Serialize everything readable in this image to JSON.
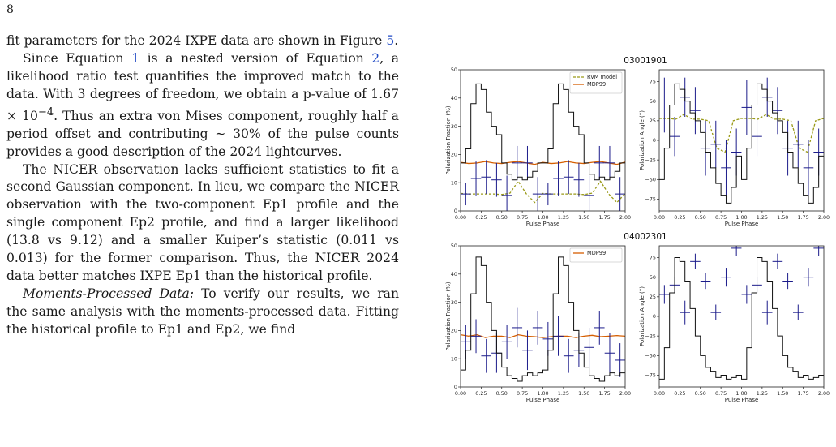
{
  "page_number": "8",
  "paragraphs": [
    {
      "indent": false,
      "parts": [
        {
          "t": "fit parameters for the 2024 IXPE data are shown in Figure "
        },
        {
          "t": "5",
          "c": "cite"
        },
        {
          "t": "."
        }
      ]
    },
    {
      "indent": true,
      "parts": [
        {
          "t": "Since Equation "
        },
        {
          "t": "1",
          "c": "cite"
        },
        {
          "t": " is a nested version of Equation "
        },
        {
          "t": "2",
          "c": "cite"
        },
        {
          "t": ", a likelihood ratio test quantifies the improved match to the data. With 3 degrees of freedom, we obtain a p-value of 1.67 × 10"
        },
        {
          "t": "−4",
          "sup": true
        },
        {
          "t": ". Thus an extra von Mises component, roughly half a period offset and contributing ∼ 30% of the pulse counts provides a good description of the 2024 lightcurves."
        }
      ]
    },
    {
      "indent": true,
      "parts": [
        {
          "t": "The NICER observation lacks sufficient statistics to fit a second Gaussian component. In lieu, we compare the NICER observation with the two-component Ep1 profile and the single component Ep2 profile, and find a larger likelihood (13.8 vs 9.12) and a smaller Kuiper’s statistic (0.011 vs 0.013) for the former comparison. Thus, the NICER 2024 data better matches IXPE Ep1 than the historical profile."
        }
      ]
    },
    {
      "indent": true,
      "parts": [
        {
          "t": "Moments-Processed Data:",
          "i": true
        },
        {
          "t": " To verify our results, we ran the same analysis with the moments-processed data. Fitting the historical profile to Ep1 and Ep2, we find"
        }
      ]
    }
  ],
  "chart_data": [
    {
      "type": "line",
      "title": "03001901",
      "xlabel": "Pulse Phase",
      "ylabel": "Polarization Fraction (%)",
      "xlim": [
        0,
        2
      ],
      "ylim": [
        0,
        50
      ],
      "xticks": [
        "0.00",
        "0.25",
        "0.50",
        "0.75",
        "1.00",
        "1.25",
        "1.50",
        "1.75",
        "2.00"
      ],
      "yticks": [
        0,
        10,
        20,
        30,
        40,
        50
      ],
      "legend": {
        "placement": "top-right",
        "entries": [
          "RVM model",
          "MDP99"
        ]
      },
      "series": [
        {
          "name": "RVM model",
          "style": "dashed",
          "color": "#9a9a18",
          "x": [
            0.0,
            0.1,
            0.2,
            0.3,
            0.4,
            0.5,
            0.6,
            0.7,
            0.8,
            0.9,
            1.0,
            1.1,
            1.2,
            1.3,
            1.4,
            1.5,
            1.6,
            1.7,
            1.8,
            1.9,
            2.0
          ],
          "y": [
            6.2,
            6,
            6,
            6,
            6,
            5.8,
            6.3,
            10.5,
            6,
            3,
            6.2,
            6,
            6,
            6,
            6,
            5.8,
            6.3,
            10.5,
            6,
            3,
            6.2
          ]
        },
        {
          "name": "MDP99",
          "style": "solid",
          "color": "#d55e00",
          "x": [
            0.0,
            0.1,
            0.2,
            0.3,
            0.4,
            0.5,
            0.6,
            0.7,
            0.8,
            0.9,
            1.0,
            1.1,
            1.2,
            1.3,
            1.4,
            1.5,
            1.6,
            1.7,
            1.8,
            1.9,
            2.0
          ],
          "y": [
            17.2,
            16.8,
            17,
            17.5,
            17,
            16.8,
            17.2,
            17.5,
            17,
            16.5,
            17.2,
            16.8,
            17,
            17.5,
            17,
            16.8,
            17.2,
            17.5,
            17,
            16.5,
            17.3
          ]
        },
        {
          "style": "points",
          "color": "#1b1b8a",
          "x": [
            0.0625,
            0.1875,
            0.3125,
            0.4375,
            0.5625,
            0.6875,
            0.8125,
            0.9375,
            1.0625,
            1.1875,
            1.3125,
            1.4375,
            1.5625,
            1.6875,
            1.8125,
            1.9375
          ],
          "y": [
            6,
            11.5,
            12,
            11,
            5.5,
            17,
            17,
            6,
            6,
            11.5,
            12,
            11,
            5.5,
            17,
            17,
            6
          ],
          "err": [
            4,
            6,
            6,
            6,
            7,
            6,
            6,
            6,
            4,
            6,
            6,
            6,
            7,
            6,
            6,
            6
          ]
        },
        {
          "style": "step",
          "color": "#111111",
          "note": "pulse profile (arbitrary units)",
          "x": [
            0,
            0.0625,
            0.125,
            0.1875,
            0.25,
            0.3125,
            0.375,
            0.4375,
            0.5,
            0.5625,
            0.625,
            0.6875,
            0.75,
            0.8125,
            0.875,
            0.9375,
            1.0,
            1.0625,
            1.125,
            1.1875,
            1.25,
            1.3125,
            1.375,
            1.4375,
            1.5,
            1.5625,
            1.625,
            1.6875,
            1.75,
            1.8125,
            1.875,
            1.9375
          ],
          "y": [
            17,
            22,
            38,
            45,
            43,
            35,
            30,
            27,
            17,
            13,
            11,
            12,
            11,
            12,
            14,
            17,
            17,
            22,
            38,
            45,
            43,
            35,
            30,
            27,
            17,
            13,
            11,
            12,
            11,
            12,
            14,
            17
          ]
        }
      ]
    },
    {
      "type": "line",
      "title": "",
      "xlabel": "Pulse Phase",
      "ylabel": "Polarization Angle (°)",
      "xlim": [
        0,
        2
      ],
      "ylim": [
        -90,
        90
      ],
      "xticks": [
        "0.00",
        "0.25",
        "0.50",
        "0.75",
        "1.00",
        "1.25",
        "1.50",
        "1.75",
        "2.00"
      ],
      "yticks": [
        -75,
        -50,
        -25,
        0,
        25,
        50,
        75
      ],
      "series": [
        {
          "name": "RVM model",
          "style": "dashed",
          "color": "#9a9a18",
          "x": [
            0.0,
            0.1,
            0.2,
            0.3,
            0.4,
            0.5,
            0.6,
            0.7,
            0.8,
            0.9,
            1.0,
            1.1,
            1.2,
            1.3,
            1.4,
            1.5,
            1.6,
            1.7,
            1.8,
            1.9,
            2.0
          ],
          "y": [
            28,
            28,
            27,
            33,
            27,
            27,
            25,
            -10,
            -15,
            25,
            28,
            28,
            27,
            33,
            27,
            27,
            25,
            -10,
            -15,
            25,
            28
          ]
        },
        {
          "style": "points",
          "color": "#1b1b8a",
          "x": [
            0.0625,
            0.1875,
            0.3125,
            0.4375,
            0.5625,
            0.6875,
            0.8125,
            0.9375,
            1.0625,
            1.1875,
            1.3125,
            1.4375,
            1.5625,
            1.6875,
            1.8125,
            1.9375
          ],
          "y": [
            45,
            5,
            55,
            38,
            -10,
            -5,
            -35,
            -15,
            42,
            5,
            55,
            38,
            -10,
            -5,
            -35,
            -15
          ],
          "err": [
            35,
            25,
            25,
            30,
            35,
            30,
            35,
            30,
            35,
            25,
            25,
            30,
            35,
            30,
            35,
            30
          ]
        },
        {
          "style": "step",
          "color": "#111111",
          "note": "pulse profile (arbitrary units)",
          "x": [
            0,
            0.0625,
            0.125,
            0.1875,
            0.25,
            0.3125,
            0.375,
            0.4375,
            0.5,
            0.5625,
            0.625,
            0.6875,
            0.75,
            0.8125,
            0.875,
            0.9375,
            1.0,
            1.0625,
            1.125,
            1.1875,
            1.25,
            1.3125,
            1.375,
            1.4375,
            1.5,
            1.5625,
            1.625,
            1.6875,
            1.75,
            1.8125,
            1.875,
            1.9375
          ],
          "y": [
            -50,
            -10,
            45,
            72,
            65,
            50,
            35,
            25,
            10,
            -15,
            -35,
            -55,
            -70,
            -80,
            -60,
            -20,
            -50,
            -10,
            45,
            72,
            65,
            50,
            35,
            25,
            10,
            -15,
            -35,
            -55,
            -70,
            -80,
            -60,
            -20
          ]
        }
      ]
    },
    {
      "type": "line",
      "title": "04002301",
      "xlabel": "Pulse Phase",
      "ylabel": "Polarization Fraction (%)",
      "xlim": [
        0,
        2
      ],
      "ylim": [
        0,
        50
      ],
      "xticks": [
        "0.00",
        "0.25",
        "0.50",
        "0.75",
        "1.00",
        "1.25",
        "1.50",
        "1.75",
        "2.00"
      ],
      "yticks": [
        0,
        10,
        20,
        30,
        40,
        50
      ],
      "legend": {
        "placement": "top-right",
        "entries": [
          "MDP99"
        ]
      },
      "series": [
        {
          "name": "MDP99",
          "style": "solid",
          "color": "#d55e00",
          "x": [
            0.0,
            0.1,
            0.2,
            0.3,
            0.4,
            0.5,
            0.6,
            0.7,
            0.8,
            0.9,
            1.0,
            1.1,
            1.2,
            1.3,
            1.4,
            1.5,
            1.6,
            1.7,
            1.8,
            1.9,
            2.0
          ],
          "y": [
            18.5,
            18,
            18.5,
            17.5,
            18,
            18,
            17.5,
            18.5,
            18,
            17.8,
            17.5,
            17.8,
            18,
            18,
            17.5,
            18,
            18.3,
            17.8,
            18,
            18.2,
            18
          ]
        },
        {
          "style": "points",
          "color": "#1b1b8a",
          "x": [
            0.0625,
            0.1875,
            0.3125,
            0.4375,
            0.5625,
            0.6875,
            0.8125,
            0.9375,
            1.0625,
            1.1875,
            1.3125,
            1.4375,
            1.5625,
            1.6875,
            1.8125,
            1.9375
          ],
          "y": [
            16,
            18,
            11,
            12,
            16,
            21,
            13,
            21,
            17,
            18,
            11,
            13,
            14,
            21,
            12,
            9.5
          ],
          "err": [
            6,
            6,
            6,
            7,
            6,
            7,
            7,
            6,
            6,
            7,
            6,
            6,
            7,
            6,
            7,
            6
          ]
        },
        {
          "style": "step",
          "color": "#111111",
          "note": "pulse profile (arbitrary units)",
          "x": [
            0,
            0.0625,
            0.125,
            0.1875,
            0.25,
            0.3125,
            0.375,
            0.4375,
            0.5,
            0.5625,
            0.625,
            0.6875,
            0.75,
            0.8125,
            0.875,
            0.9375,
            1.0,
            1.0625,
            1.125,
            1.1875,
            1.25,
            1.3125,
            1.375,
            1.4375,
            1.5,
            1.5625,
            1.625,
            1.6875,
            1.75,
            1.8125,
            1.875,
            1.9375
          ],
          "y": [
            6,
            13,
            33,
            46,
            43,
            30,
            20,
            12,
            7,
            4,
            3,
            2,
            4,
            5,
            4,
            5,
            6,
            13,
            33,
            46,
            43,
            30,
            20,
            12,
            7,
            4,
            3,
            2,
            4,
            5,
            4,
            5
          ]
        }
      ]
    },
    {
      "type": "line",
      "title": "",
      "xlabel": "Pulse Phase",
      "ylabel": "Polarization Angle (°)",
      "xlim": [
        0,
        2
      ],
      "ylim": [
        -90,
        90
      ],
      "xticks": [
        "0.00",
        "0.25",
        "0.50",
        "0.75",
        "1.00",
        "1.25",
        "1.50",
        "1.75",
        "2.00"
      ],
      "yticks": [
        -75,
        -50,
        -25,
        0,
        25,
        50,
        75
      ],
      "series": [
        {
          "style": "points",
          "color": "#1b1b8a",
          "x": [
            0.0625,
            0.1875,
            0.3125,
            0.4375,
            0.5625,
            0.6875,
            0.8125,
            0.9375,
            1.0625,
            1.1875,
            1.3125,
            1.4375,
            1.5625,
            1.6875,
            1.8125,
            1.9375
          ],
          "y": [
            28,
            40,
            5,
            70,
            45,
            5,
            50,
            87,
            28,
            40,
            5,
            70,
            45,
            5,
            50,
            87
          ],
          "err": [
            12,
            10,
            15,
            10,
            10,
            10,
            12,
            10,
            12,
            10,
            15,
            10,
            10,
            10,
            12,
            10
          ]
        },
        {
          "style": "step",
          "color": "#111111",
          "note": "pulse profile (arbitrary units)",
          "x": [
            0,
            0.0625,
            0.125,
            0.1875,
            0.25,
            0.3125,
            0.375,
            0.4375,
            0.5,
            0.5625,
            0.625,
            0.6875,
            0.75,
            0.8125,
            0.875,
            0.9375,
            1.0,
            1.0625,
            1.125,
            1.1875,
            1.25,
            1.3125,
            1.375,
            1.4375,
            1.5,
            1.5625,
            1.625,
            1.6875,
            1.75,
            1.8125,
            1.875,
            1.9375
          ],
          "y": [
            -80,
            -40,
            30,
            75,
            70,
            45,
            10,
            -25,
            -50,
            -65,
            -70,
            -78,
            -75,
            -80,
            -78,
            -75,
            -80,
            -40,
            30,
            75,
            70,
            45,
            10,
            -25,
            -50,
            -65,
            -70,
            -78,
            -75,
            -80,
            -78,
            -75
          ]
        }
      ]
    }
  ]
}
